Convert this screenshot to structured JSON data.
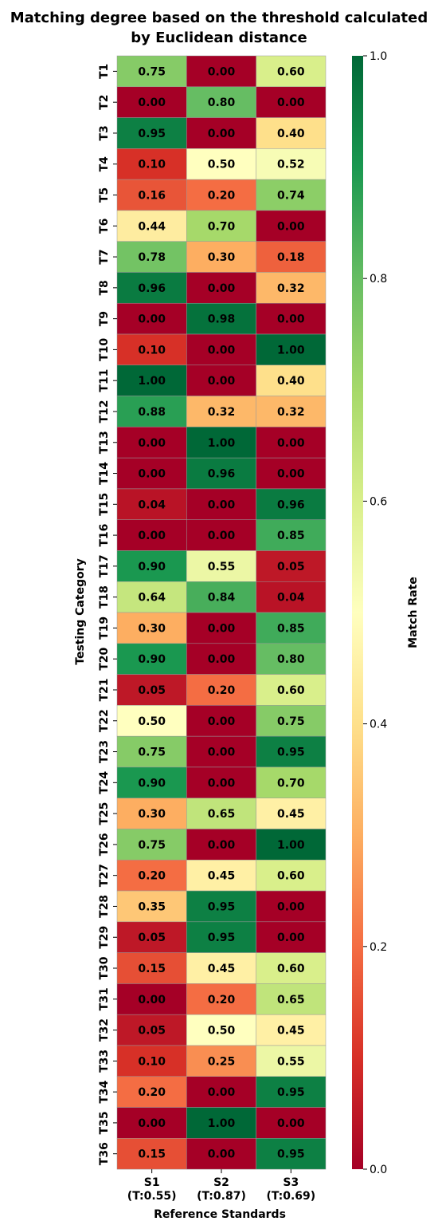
{
  "chart_data": {
    "type": "heatmap",
    "title": [
      "Matching degree based on the threshold calculated",
      "by Euclidean distance"
    ],
    "xlabel": "Reference Standards",
    "ylabel": "Testing Category",
    "colorbar_label": "Match Rate",
    "colorbar_ticks": [
      "0.0",
      "0.2",
      "0.4",
      "0.6",
      "0.8",
      "1.0"
    ],
    "colorbar_range": [
      0,
      1
    ],
    "colormap": "RdYlGn",
    "columns": [
      {
        "name": "S1",
        "threshold": "(T:0.55)"
      },
      {
        "name": "S2",
        "threshold": "(T:0.87)"
      },
      {
        "name": "S3",
        "threshold": "(T:0.69)"
      }
    ],
    "rows": [
      "T1",
      "T2",
      "T3",
      "T4",
      "T5",
      "T6",
      "T7",
      "T8",
      "T9",
      "T10",
      "T11",
      "T12",
      "T13",
      "T14",
      "T15",
      "T16",
      "T17",
      "T18",
      "T19",
      "T20",
      "T21",
      "T22",
      "T23",
      "T24",
      "T25",
      "T26",
      "T27",
      "T28",
      "T29",
      "T30",
      "T31",
      "T32",
      "T33",
      "T34",
      "T35",
      "T36"
    ],
    "values": [
      [
        0.75,
        0.0,
        0.6
      ],
      [
        0.0,
        0.8,
        0.0
      ],
      [
        0.95,
        0.0,
        0.4
      ],
      [
        0.1,
        0.5,
        0.52
      ],
      [
        0.16,
        0.2,
        0.74
      ],
      [
        0.44,
        0.7,
        0.0
      ],
      [
        0.78,
        0.3,
        0.18
      ],
      [
        0.96,
        0.0,
        0.32
      ],
      [
        0.0,
        0.98,
        0.0
      ],
      [
        0.1,
        0.0,
        1.0
      ],
      [
        1.0,
        0.0,
        0.4
      ],
      [
        0.88,
        0.32,
        0.32
      ],
      [
        0.0,
        1.0,
        0.0
      ],
      [
        0.0,
        0.96,
        0.0
      ],
      [
        0.04,
        0.0,
        0.96
      ],
      [
        0.0,
        0.0,
        0.85
      ],
      [
        0.9,
        0.55,
        0.05
      ],
      [
        0.64,
        0.84,
        0.04
      ],
      [
        0.3,
        0.0,
        0.85
      ],
      [
        0.9,
        0.0,
        0.8
      ],
      [
        0.05,
        0.2,
        0.6
      ],
      [
        0.5,
        0.0,
        0.75
      ],
      [
        0.75,
        0.0,
        0.95
      ],
      [
        0.9,
        0.0,
        0.7
      ],
      [
        0.3,
        0.65,
        0.45
      ],
      [
        0.75,
        0.0,
        1.0
      ],
      [
        0.2,
        0.45,
        0.6
      ],
      [
        0.35,
        0.95,
        0.0
      ],
      [
        0.05,
        0.95,
        0.0
      ],
      [
        0.15,
        0.45,
        0.6
      ],
      [
        0.0,
        0.2,
        0.65
      ],
      [
        0.05,
        0.5,
        0.45
      ],
      [
        0.1,
        0.25,
        0.55
      ],
      [
        0.2,
        0.0,
        0.95
      ],
      [
        0.0,
        1.0,
        0.0
      ],
      [
        0.15,
        0.0,
        0.95
      ]
    ]
  }
}
